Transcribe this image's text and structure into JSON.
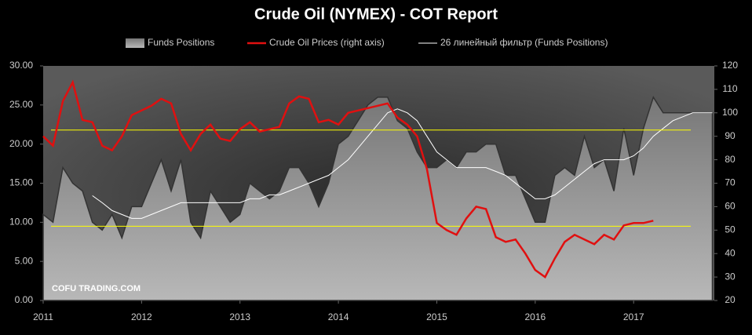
{
  "chart_data": {
    "type": "combo",
    "title": "Crude Oil (NYMEX) - COT Report",
    "annotation": "COFU TRADING.COM",
    "x": [
      2011.0,
      2011.1,
      2011.2,
      2011.3,
      2011.4,
      2011.5,
      2011.6,
      2011.7,
      2011.8,
      2011.9,
      2012.0,
      2012.1,
      2012.2,
      2012.3,
      2012.4,
      2012.5,
      2012.6,
      2012.7,
      2012.8,
      2012.9,
      2013.0,
      2013.1,
      2013.2,
      2013.3,
      2013.4,
      2013.5,
      2013.6,
      2013.7,
      2013.8,
      2013.9,
      2014.0,
      2014.1,
      2014.2,
      2014.3,
      2014.4,
      2014.5,
      2014.6,
      2014.7,
      2014.8,
      2014.9,
      2015.0,
      2015.1,
      2015.2,
      2015.3,
      2015.4,
      2015.5,
      2015.6,
      2015.7,
      2015.8,
      2015.9,
      2016.0,
      2016.1,
      2016.2,
      2016.3,
      2016.4,
      2016.5,
      2016.6,
      2016.7,
      2016.8,
      2016.9,
      2017.0,
      2017.1,
      2017.2,
      2017.3,
      2017.4,
      2017.5,
      2017.6,
      2017.7,
      2017.8
    ],
    "series": [
      {
        "name": "Funds Positions",
        "type": "area",
        "color": "#aaaaaa",
        "values": [
          11,
          10,
          17,
          15,
          14,
          10,
          9,
          11,
          8,
          12,
          12,
          15,
          18,
          14,
          18,
          10,
          8,
          14,
          12,
          10,
          11,
          15,
          14,
          13,
          14,
          17,
          17,
          15,
          12,
          15,
          20,
          21,
          23,
          25,
          26,
          26,
          23,
          22,
          19,
          17,
          17,
          18,
          17,
          19,
          19,
          20,
          20,
          16,
          16,
          13,
          10,
          10,
          16,
          17,
          16,
          21,
          17,
          18,
          14,
          22,
          16,
          22,
          26,
          24,
          24,
          24,
          24,
          24,
          24
        ]
      },
      {
        "name": "Crude Oil Prices (right axis)",
        "type": "line",
        "axis": "y2",
        "color": "#e01010",
        "values": [
          90,
          86,
          105,
          113,
          97,
          96,
          86,
          84,
          90,
          99,
          101,
          103,
          106,
          104,
          91,
          84,
          91,
          95,
          89,
          88,
          93,
          96,
          92,
          93,
          94,
          104,
          107,
          106,
          96,
          97,
          95,
          100,
          101,
          102,
          103,
          104,
          98,
          95,
          90,
          76,
          53,
          50,
          48,
          55,
          60,
          59,
          47,
          45,
          46,
          40,
          33,
          30,
          38,
          45,
          48,
          46,
          44,
          48,
          46,
          52,
          53,
          53,
          54,
          null,
          null,
          null,
          null,
          null,
          null
        ]
      },
      {
        "name": "26 линейный фильтр (Funds Positions)",
        "type": "line",
        "color": "#ffffff",
        "values": [
          null,
          null,
          null,
          null,
          null,
          13.4,
          12.5,
          11.5,
          11,
          10.5,
          10.5,
          11,
          11.5,
          12,
          12.5,
          12.5,
          12.5,
          12.5,
          12.5,
          12.5,
          12.5,
          13,
          13,
          13.5,
          13.5,
          14,
          14.5,
          15,
          15.5,
          16,
          17,
          18,
          19.5,
          21,
          22.5,
          24,
          24.5,
          24,
          23,
          21,
          19,
          18,
          17,
          17,
          17,
          17,
          16.5,
          16,
          15,
          14,
          13,
          13,
          13.5,
          14.5,
          15.5,
          16.5,
          17.5,
          18,
          18,
          18,
          18.5,
          19.5,
          21,
          22,
          23,
          23.5,
          24,
          24,
          24
        ]
      }
    ],
    "reference_lines": [
      21.8,
      9.5
    ],
    "reference_color": "#ffff00",
    "xlim": [
      2011,
      2017.82
    ],
    "xticks": [
      2011,
      2012,
      2013,
      2014,
      2015,
      2016,
      2017
    ],
    "ylim": [
      0,
      30
    ],
    "yticks": [
      {
        "value": 0,
        "label": "0.00"
      },
      {
        "value": 5,
        "label": "5.00"
      },
      {
        "value": 10,
        "label": "10.00"
      },
      {
        "value": 15,
        "label": "15.00"
      },
      {
        "value": 20,
        "label": "20.00"
      },
      {
        "value": 25,
        "label": "25.00"
      },
      {
        "value": 30,
        "label": "30.00"
      }
    ],
    "y2lim": [
      20,
      120
    ],
    "y2ticks": [
      20,
      30,
      40,
      50,
      60,
      70,
      80,
      90,
      100,
      110,
      120
    ]
  }
}
